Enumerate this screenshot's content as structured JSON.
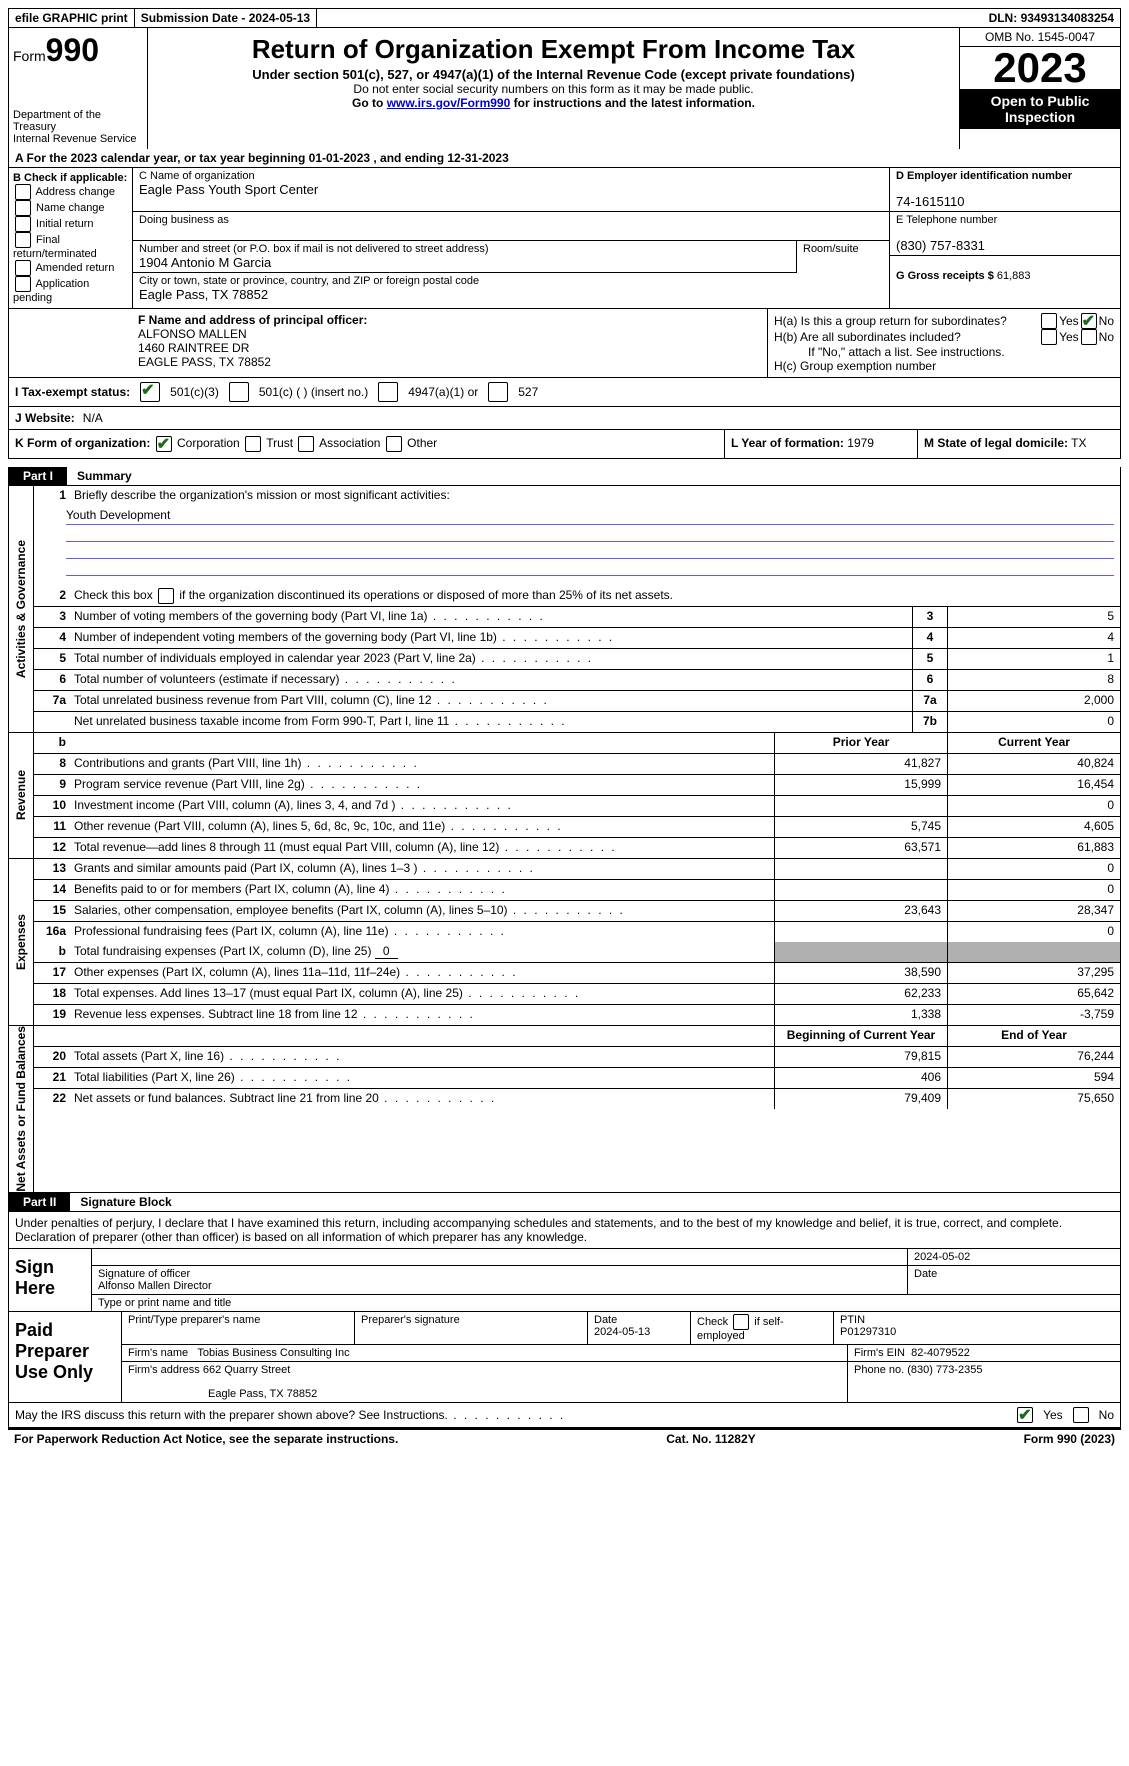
{
  "topbar": {
    "efile": "efile GRAPHIC print",
    "sub_label": "Submission Date - ",
    "sub_date": "2024-05-13",
    "dln_label": "DLN: ",
    "dln": "93493134083254"
  },
  "header": {
    "form_prefix": "Form",
    "form_no": "990",
    "dept": "Department of the Treasury\nInternal Revenue Service",
    "title": "Return of Organization Exempt From Income Tax",
    "subtitle": "Under section 501(c), 527, or 4947(a)(1) of the Internal Revenue Code (except private foundations)",
    "note1": "Do not enter social security numbers on this form as it may be made public.",
    "note2_prefix": "Go to ",
    "note2_link": "www.irs.gov/Form990",
    "note2_suffix": " for instructions and the latest information.",
    "omb": "OMB No. 1545-0047",
    "year": "2023",
    "inspect": "Open to Public Inspection"
  },
  "lineA": "A For the 2023 calendar year, or tax year beginning 01-01-2023    , and ending 12-31-2023",
  "B": {
    "label": "B Check if applicable:",
    "opts": [
      "Address change",
      "Name change",
      "Initial return",
      "Final return/terminated",
      "Amended return",
      "Application pending"
    ]
  },
  "C": {
    "name_label": "C Name of organization",
    "name": "Eagle Pass Youth Sport Center",
    "dba_label": "Doing business as",
    "dba": "",
    "street_label": "Number and street (or P.O. box if mail is not delivered to street address)",
    "street": "1904 Antonio M Garcia",
    "room_label": "Room/suite",
    "city_label": "City or town, state or province, country, and ZIP or foreign postal code",
    "city": "Eagle Pass, TX  78852"
  },
  "D": {
    "label": "D Employer identification number",
    "val": "74-1615110"
  },
  "E": {
    "label": "E Telephone number",
    "val": "(830) 757-8331"
  },
  "G": {
    "label": "G Gross receipts $",
    "val": "61,883"
  },
  "F": {
    "label": "F  Name and address of principal officer:",
    "name": "ALFONSO MALLEN",
    "addr1": "1460 RAINTREE DR",
    "addr2": "EAGLE PASS, TX  78852"
  },
  "H": {
    "a": "H(a)  Is this a group return for subordinates?",
    "b": "H(b)  Are all subordinates included?",
    "b_note": "If \"No,\" attach a list. See instructions.",
    "c": "H(c)  Group exemption number",
    "yes": "Yes",
    "no": "No"
  },
  "I": {
    "label": "I   Tax-exempt status:",
    "o1": "501(c)(3)",
    "o2": "501(c) (  ) (insert no.)",
    "o3": "4947(a)(1) or",
    "o4": "527"
  },
  "J": {
    "label": "J   Website:",
    "val": "N/A"
  },
  "K": {
    "label": "K Form of organization:",
    "o1": "Corporation",
    "o2": "Trust",
    "o3": "Association",
    "o4": "Other"
  },
  "L": {
    "label": "L Year of formation:",
    "val": "1979"
  },
  "M": {
    "label": "M State of legal domicile:",
    "val": "TX"
  },
  "part1": {
    "tab": "Part I",
    "title": "Summary"
  },
  "gov": {
    "label": "Activities & Governance",
    "l1": "Briefly describe the organization's mission or most significant activities:",
    "l1v": "Youth Development",
    "l2": "Check this box          if the organization discontinued its operations or disposed of more than 25% of its net assets.",
    "rows": [
      {
        "n": "3",
        "d": "Number of voting members of the governing body (Part VI, line 1a)",
        "c": "3",
        "v": "5"
      },
      {
        "n": "4",
        "d": "Number of independent voting members of the governing body (Part VI, line 1b)",
        "c": "4",
        "v": "4"
      },
      {
        "n": "5",
        "d": "Total number of individuals employed in calendar year 2023 (Part V, line 2a)",
        "c": "5",
        "v": "1"
      },
      {
        "n": "6",
        "d": "Total number of volunteers (estimate if necessary)",
        "c": "6",
        "v": "8"
      },
      {
        "n": "7a",
        "d": "Total unrelated business revenue from Part VIII, column (C), line 12",
        "c": "7a",
        "v": "2,000"
      },
      {
        "n": "",
        "d": "Net unrelated business taxable income from Form 990-T, Part I, line 11",
        "c": "7b",
        "v": "0"
      }
    ]
  },
  "rev": {
    "label": "Revenue",
    "hdr_prior": "Prior Year",
    "hdr_curr": "Current Year",
    "rows": [
      {
        "n": "8",
        "d": "Contributions and grants (Part VIII, line 1h)",
        "p": "41,827",
        "c": "40,824"
      },
      {
        "n": "9",
        "d": "Program service revenue (Part VIII, line 2g)",
        "p": "15,999",
        "c": "16,454"
      },
      {
        "n": "10",
        "d": "Investment income (Part VIII, column (A), lines 3, 4, and 7d )",
        "p": "",
        "c": "0"
      },
      {
        "n": "11",
        "d": "Other revenue (Part VIII, column (A), lines 5, 6d, 8c, 9c, 10c, and 11e)",
        "p": "5,745",
        "c": "4,605"
      },
      {
        "n": "12",
        "d": "Total revenue—add lines 8 through 11 (must equal Part VIII, column (A), line 12)",
        "p": "63,571",
        "c": "61,883"
      }
    ]
  },
  "exp": {
    "label": "Expenses",
    "rows": [
      {
        "n": "13",
        "d": "Grants and similar amounts paid (Part IX, column (A), lines 1–3 )",
        "p": "",
        "c": "0"
      },
      {
        "n": "14",
        "d": "Benefits paid to or for members (Part IX, column (A), line 4)",
        "p": "",
        "c": "0"
      },
      {
        "n": "15",
        "d": "Salaries, other compensation, employee benefits (Part IX, column (A), lines 5–10)",
        "p": "23,643",
        "c": "28,347"
      },
      {
        "n": "16a",
        "d": "Professional fundraising fees (Part IX, column (A), line 11e)",
        "p": "",
        "c": "0"
      }
    ],
    "l16b_n": "b",
    "l16b": "Total fundraising expenses (Part IX, column (D), line 25)",
    "l16b_v": "0",
    "rows2": [
      {
        "n": "17",
        "d": "Other expenses (Part IX, column (A), lines 11a–11d, 11f–24e)",
        "p": "38,590",
        "c": "37,295"
      },
      {
        "n": "18",
        "d": "Total expenses. Add lines 13–17 (must equal Part IX, column (A), line 25)",
        "p": "62,233",
        "c": "65,642"
      },
      {
        "n": "19",
        "d": "Revenue less expenses. Subtract line 18 from line 12",
        "p": "1,338",
        "c": "-3,759"
      }
    ]
  },
  "na": {
    "label": "Net Assets or Fund Balances",
    "hdr_begin": "Beginning of Current Year",
    "hdr_end": "End of Year",
    "rows": [
      {
        "n": "20",
        "d": "Total assets (Part X, line 16)",
        "p": "79,815",
        "c": "76,244"
      },
      {
        "n": "21",
        "d": "Total liabilities (Part X, line 26)",
        "p": "406",
        "c": "594"
      },
      {
        "n": "22",
        "d": "Net assets or fund balances. Subtract line 21 from line 20",
        "p": "79,409",
        "c": "75,650"
      }
    ]
  },
  "part2": {
    "tab": "Part II",
    "title": "Signature Block"
  },
  "sig": {
    "decl": "Under penalties of perjury, I declare that I have examined this return, including accompanying schedules and statements, and to the best of my knowledge and belief, it is true, correct, and complete. Declaration of preparer (other than officer) is based on all information of which preparer has any knowledge.",
    "sign_here": "Sign Here",
    "sig_of_officer": "Signature of officer",
    "officer_name": "Alfonso Mallen  Director",
    "type_name": "Type or print name and title",
    "date_label": "Date",
    "date1": "2024-05-02",
    "paid": "Paid Preparer Use Only",
    "h_name": "Print/Type preparer's name",
    "h_sig": "Preparer's signature",
    "h_date": "Date",
    "date2": "2024-05-13",
    "check": "Check          if self-employed",
    "ptin_label": "PTIN",
    "ptin": "P01297310",
    "firm_name_l": "Firm's name",
    "firm_name": "Tobias Business Consulting Inc",
    "firm_ein_l": "Firm's EIN",
    "firm_ein": "82-4079522",
    "firm_addr_l": "Firm's address",
    "firm_addr1": "662 Quarry Street",
    "firm_addr2": "Eagle Pass, TX  78852",
    "phone_l": "Phone no.",
    "phone": "(830) 773-2355",
    "discuss": "May the IRS discuss this return with the preparer shown above? See Instructions."
  },
  "footer": {
    "left": "For Paperwork Reduction Act Notice, see the separate instructions.",
    "mid": "Cat. No. 11282Y",
    "right": "Form 990 (2023)"
  }
}
